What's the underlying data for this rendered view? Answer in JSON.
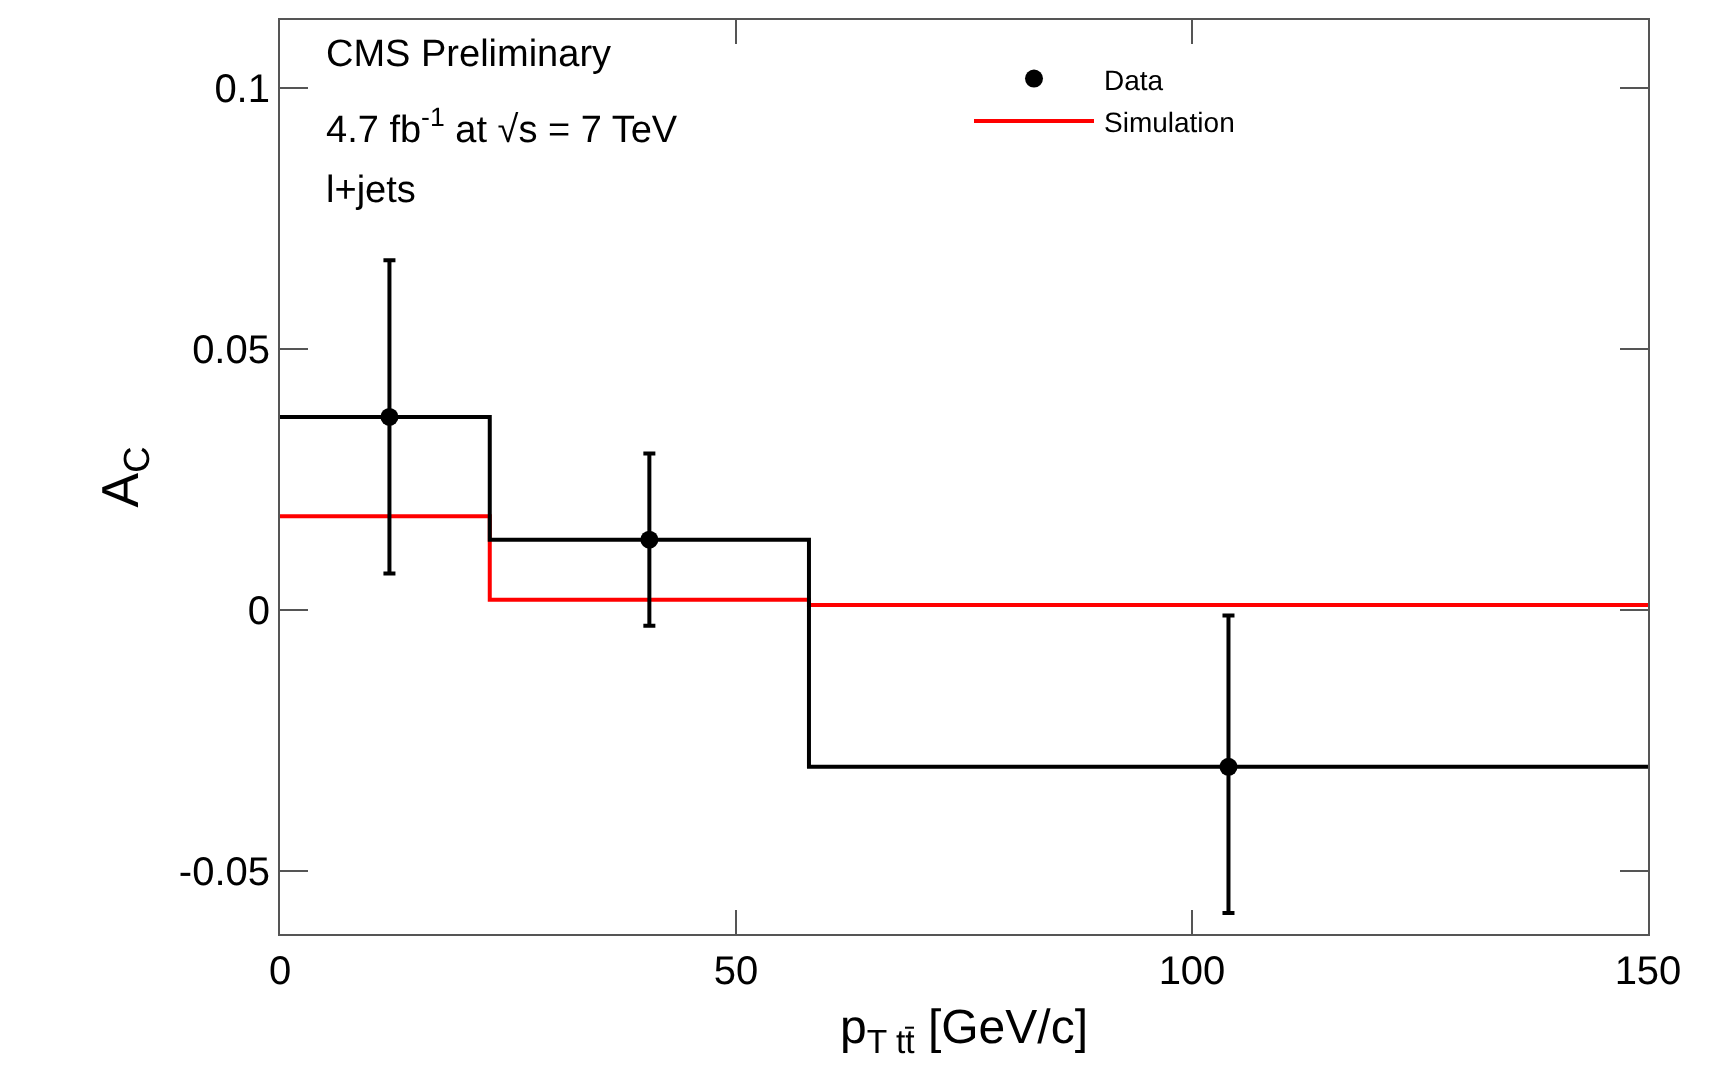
{
  "chart_data": {
    "type": "step",
    "xlabel": "p$_{T tt̄}$ [GeV/c]",
    "ylabel": "A$_{C}$",
    "annotations": [
      "CMS Preliminary",
      "4.7 fb$^{-1}$ at √s = 7 TeV",
      "l+jets"
    ],
    "series": [
      {
        "type": "step",
        "color": "#ff0000",
        "x": [
          0,
          23,
          58,
          150
        ],
        "values": [
          0.018,
          0.002,
          0.001,
          0.001
        ],
        "name": "Simulation"
      },
      {
        "type": "step",
        "color": "#000000",
        "x": [
          0,
          23,
          58,
          150
        ],
        "values": [
          0.037,
          0.0135,
          -0.03,
          -0.03
        ]
      },
      {
        "type": "scatter",
        "color": "#000000",
        "x": [
          12,
          40.5,
          104
        ],
        "values": [
          0.037,
          0.0135,
          -0.03
        ],
        "errors": [
          [
            0.007,
            0.067
          ],
          [
            -0.003,
            0.03
          ],
          [
            -0.058,
            -0.001
          ]
        ],
        "name": "Data",
        "marker": "circle"
      }
    ],
    "xlim": [
      0,
      150
    ],
    "xticks": [
      0,
      50,
      100,
      150
    ],
    "ylim": [
      -0.062,
      0.113
    ],
    "yticks": [
      {
        "value": -0.05,
        "label": "-0.05"
      },
      0,
      0.05,
      0.1
    ],
    "grid": false,
    "legend": "top right"
  }
}
